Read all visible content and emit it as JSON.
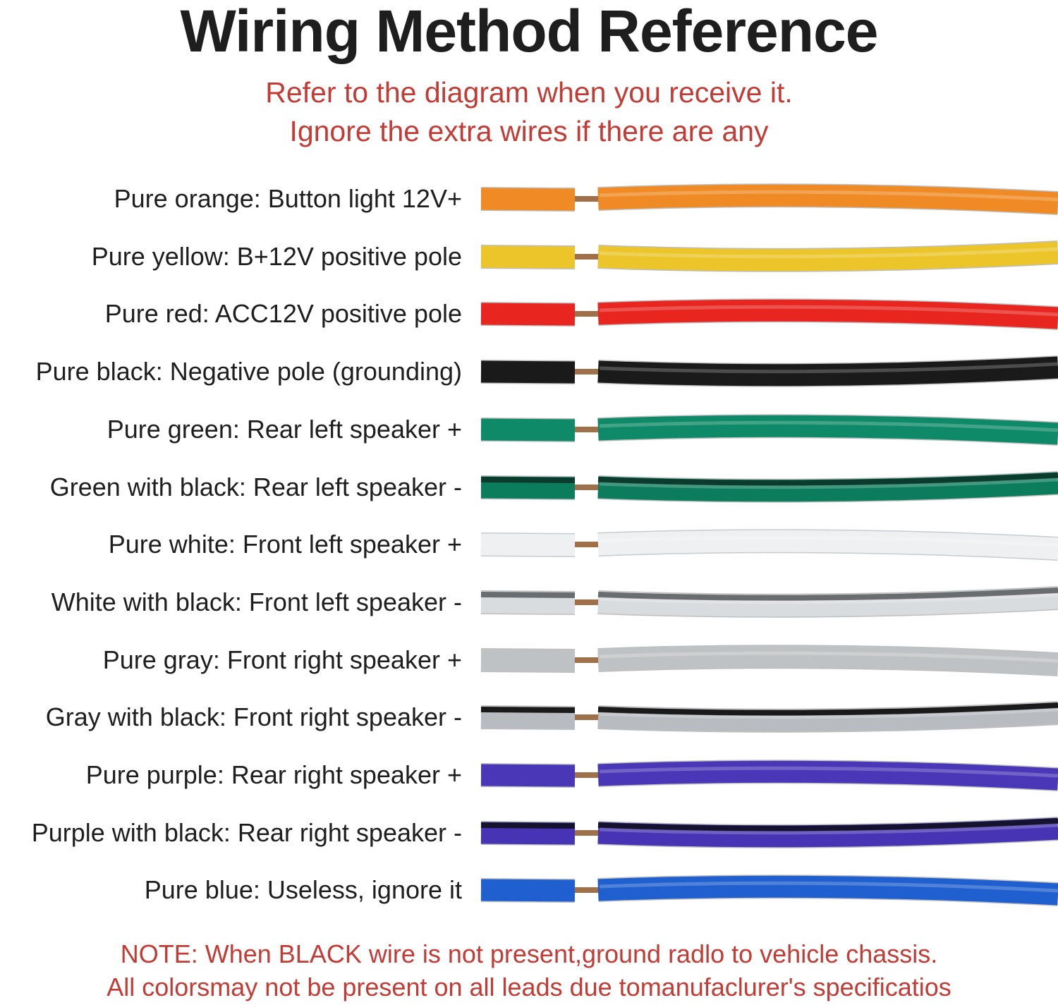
{
  "title": "Wiring Method Reference",
  "subtitle": [
    "Refer to the diagram when you receive it.",
    "Ignore the extra wires if there are any"
  ],
  "wires": [
    {
      "label": "Pure orange: Button light 12V+",
      "color": "#f08a24",
      "stripe": null
    },
    {
      "label": "Pure yellow: B+12V positive pole",
      "color": "#ecc52a",
      "stripe": null
    },
    {
      "label": "Pure red: ACC12V positive pole",
      "color": "#e8251f",
      "stripe": null
    },
    {
      "label": "Pure black: Negative pole (grounding)",
      "color": "#1a1a1a",
      "stripe": null
    },
    {
      "label": "Pure green: Rear left speaker +",
      "color": "#0f8a68",
      "stripe": null
    },
    {
      "label": "Green with black: Rear left speaker -",
      "color": "#0c7d5c",
      "stripe": "#0a3b2c"
    },
    {
      "label": "Pure white: Front left speaker +",
      "color": "#eef0f2",
      "stripe": null
    },
    {
      "label": "White with black: Front left speaker -",
      "color": "#d9dcdf",
      "stripe": "#6a6d70"
    },
    {
      "label": "Pure gray: Front right speaker +",
      "color": "#bfc2c5",
      "stripe": null
    },
    {
      "label": "Gray with black: Front right speaker -",
      "color": "#b8bcc0",
      "stripe": "#1a1a1a"
    },
    {
      "label": "Pure purple: Rear right speaker +",
      "color": "#4a37b8",
      "stripe": null
    },
    {
      "label": "Purple with black: Rear right speaker -",
      "color": "#4634b5",
      "stripe": "#151230"
    },
    {
      "label": "Pure blue: Useless, ignore it",
      "color": "#1f5fcf",
      "stripe": null
    }
  ],
  "copper_color": "#a0704a",
  "note": [
    "NOTE: When BLACK wire is not present,ground radlo to vehicle chassis.",
    "All colorsmay not be present on all leads due tomanufaclurer's specificatios"
  ]
}
